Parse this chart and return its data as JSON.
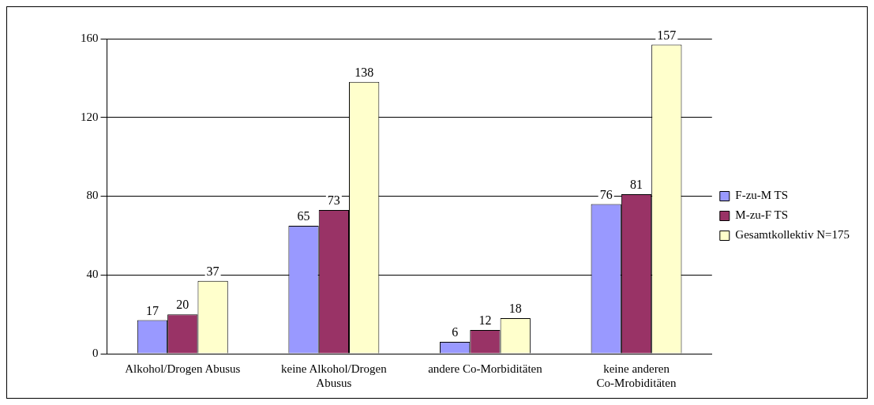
{
  "chart_data": {
    "type": "bar",
    "categories": [
      "Alkohol/Drogen Abusus",
      "keine Alkohol/Drogen Abusus",
      "andere Co-Morbiditäten",
      "keine anderen Co-Mrobiditäten"
    ],
    "series": [
      {
        "name": "F-zu-M TS",
        "color": "#9999ff",
        "values": [
          17,
          65,
          6,
          76
        ]
      },
      {
        "name": "M-zu-F TS",
        "color": "#993366",
        "values": [
          20,
          73,
          12,
          81
        ]
      },
      {
        "name": "Gesamtkollektiv N=175",
        "color": "#ffffcc",
        "values": [
          37,
          138,
          18,
          157
        ]
      }
    ],
    "ylim": [
      0,
      160
    ],
    "yticks": [
      0,
      40,
      80,
      120,
      160
    ],
    "grid": "y",
    "legend": "right",
    "data_labels": true
  }
}
